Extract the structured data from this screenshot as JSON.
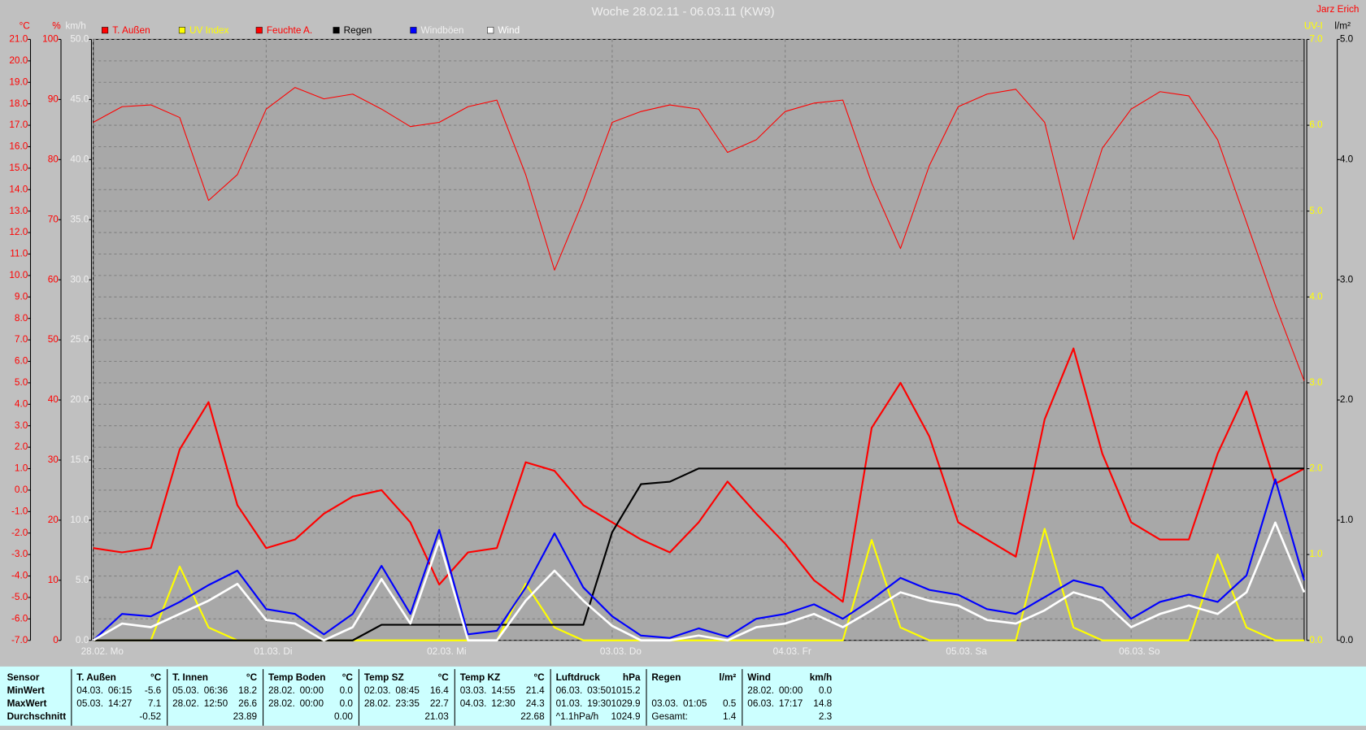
{
  "chart_data": {
    "type": "line",
    "title": "Woche 28.02.11 - 06.03.11 (KW9)",
    "author": "Jarz Erich",
    "grid": true,
    "x": [
      0,
      4,
      8,
      12,
      16,
      20,
      24,
      28,
      32,
      36,
      40,
      44,
      48,
      52,
      56,
      60,
      64,
      68,
      72,
      76,
      80,
      84,
      88,
      92,
      96,
      100,
      104,
      108,
      112,
      116,
      120,
      124,
      128,
      132,
      136,
      140,
      144,
      148,
      152,
      156,
      160,
      164,
      168
    ],
    "xlim": [
      0,
      168
    ],
    "xticks": [
      {
        "value": 0,
        "label": "28.02.  Mo"
      },
      {
        "value": 24,
        "label": "01.03.  Di"
      },
      {
        "value": 48,
        "label": "02.03.  Mi"
      },
      {
        "value": 72,
        "label": "03.03.  Do"
      },
      {
        "value": 96,
        "label": "04.03.  Fr"
      },
      {
        "value": 120,
        "label": "05.03.  Sa"
      },
      {
        "value": 144,
        "label": "06.03.  So"
      }
    ],
    "axes": {
      "temp": {
        "unit": "°C",
        "color": "#ff0000",
        "side": "left",
        "lim": [
          -7,
          21
        ],
        "ticks": [
          {
            "value": 21,
            "label": "21.0"
          },
          {
            "value": 20,
            "label": "20.0"
          },
          {
            "value": 19,
            "label": "19.0"
          },
          {
            "value": 18,
            "label": "18.0"
          },
          {
            "value": 17,
            "label": "17.0"
          },
          {
            "value": 16,
            "label": "16.0"
          },
          {
            "value": 15,
            "label": "15.0"
          },
          {
            "value": 14,
            "label": "14.0"
          },
          {
            "value": 13,
            "label": "13.0"
          },
          {
            "value": 12,
            "label": "12.0"
          },
          {
            "value": 11,
            "label": "11.0"
          },
          {
            "value": 10,
            "label": "10.0"
          },
          {
            "value": 9,
            "label": "9.0"
          },
          {
            "value": 8,
            "label": "8.0"
          },
          {
            "value": 7,
            "label": "7.0"
          },
          {
            "value": 6,
            "label": "6.0"
          },
          {
            "value": 5,
            "label": "5.0"
          },
          {
            "value": 4,
            "label": "4.0"
          },
          {
            "value": 3,
            "label": "3.0"
          },
          {
            "value": 2,
            "label": "2.0"
          },
          {
            "value": 1,
            "label": "1.0"
          },
          {
            "value": 0,
            "label": "0.0"
          },
          {
            "value": -1,
            "label": "-1.0"
          },
          {
            "value": -2,
            "label": "-2.0"
          },
          {
            "value": -3,
            "label": "-3.0"
          },
          {
            "value": -4,
            "label": "-4.0"
          },
          {
            "value": -5,
            "label": "-5.0"
          },
          {
            "value": -6,
            "label": "-6.0"
          },
          {
            "value": -7,
            "label": "-7.0"
          }
        ]
      },
      "hum": {
        "unit": "%",
        "color": "#ff0000",
        "side": "left",
        "lim": [
          0,
          100
        ],
        "ticks": [
          100,
          90,
          80,
          70,
          60,
          50,
          40,
          30,
          20,
          10,
          0
        ]
      },
      "wind": {
        "unit": "km/h",
        "color": "#f0f0f0",
        "side": "left",
        "lim": [
          0,
          50
        ],
        "ticks": [
          {
            "value": 50,
            "label": "50.0"
          },
          {
            "value": 45,
            "label": "45.0"
          },
          {
            "value": 40,
            "label": "40.0"
          },
          {
            "value": 35,
            "label": "35.0"
          },
          {
            "value": 30,
            "label": "30.0"
          },
          {
            "value": 25,
            "label": "25.0"
          },
          {
            "value": 20,
            "label": "20.0"
          },
          {
            "value": 15,
            "label": "15.0"
          },
          {
            "value": 10,
            "label": "10.0"
          },
          {
            "value": 5,
            "label": "5.0"
          },
          {
            "value": 0,
            "label": "0.0"
          }
        ]
      },
      "uv": {
        "unit": "UV-I",
        "color": "#ffff00",
        "side": "right",
        "lim": [
          0,
          7
        ],
        "ticks": [
          {
            "value": 7,
            "label": "7.0"
          },
          {
            "value": 6,
            "label": "6.0"
          },
          {
            "value": 5,
            "label": "5.0"
          },
          {
            "value": 4,
            "label": "4.0"
          },
          {
            "value": 3,
            "label": "3.0"
          },
          {
            "value": 2,
            "label": "2.0"
          },
          {
            "value": 1,
            "label": "1.0"
          },
          {
            "value": 0,
            "label": "0.0"
          }
        ]
      },
      "rain": {
        "unit": "l/m²",
        "color": "#000000",
        "side": "right",
        "lim": [
          0,
          5
        ],
        "ticks": [
          {
            "value": 5,
            "label": "5.0"
          },
          {
            "value": 4,
            "label": "4.0"
          },
          {
            "value": 3,
            "label": "3.0"
          },
          {
            "value": 2,
            "label": "2.0"
          },
          {
            "value": 1,
            "label": "1.0"
          },
          {
            "value": 0,
            "label": "0.0"
          }
        ]
      }
    },
    "series": [
      {
        "name": "T. Außen",
        "color": "#ff0000",
        "axis": "temp",
        "width": 2,
        "values": [
          -2.7,
          -2.9,
          -2.7,
          1.9,
          4.1,
          -0.7,
          -2.7,
          -2.3,
          -1.1,
          -0.3,
          0.0,
          -1.5,
          -4.4,
          -2.9,
          -2.7,
          1.3,
          0.9,
          -0.7,
          -1.5,
          -2.3,
          -2.9,
          -1.5,
          0.4,
          -1.1,
          -2.5,
          -4.2,
          -5.2,
          2.9,
          5.0,
          2.5,
          -1.5,
          -2.3,
          -3.1,
          3.3,
          6.6,
          1.7,
          -1.5,
          -2.3,
          -2.3,
          1.7,
          4.6,
          0.3,
          1.0
        ]
      },
      {
        "name": "UV Index",
        "color": "#ffff00",
        "axis": "uv",
        "width": 2,
        "values": [
          0,
          0,
          0,
          0.86,
          0.15,
          0,
          0,
          0,
          0,
          0,
          0,
          0,
          0,
          0,
          0,
          0.66,
          0.15,
          0,
          0,
          0,
          0,
          0,
          0,
          0,
          0,
          0,
          0,
          1.17,
          0.15,
          0,
          0,
          0,
          0,
          1.3,
          0.15,
          0,
          0,
          0,
          0,
          1.0,
          0.15,
          0,
          0
        ]
      },
      {
        "name": "Feuchte A.",
        "color": "#ff0000",
        "axis": "hum",
        "width": 1,
        "values": [
          86.2,
          88.8,
          89.1,
          87,
          73.2,
          77.5,
          88.4,
          92,
          90.1,
          90.9,
          88.4,
          85.5,
          86.2,
          88.8,
          89.9,
          77.5,
          61.6,
          73.2,
          86.2,
          88,
          89.1,
          88.4,
          81.2,
          83.3,
          88,
          89.4,
          89.9,
          76.1,
          65.2,
          79,
          88.8,
          90.9,
          91.7,
          86.2,
          66.7,
          81.9,
          88.4,
          91.3,
          90.6,
          83.3,
          69.6,
          55.8,
          43.2
        ]
      },
      {
        "name": "Regen",
        "color": "#000000",
        "axis": "rain",
        "width": 2,
        "values": [
          0,
          0,
          0,
          0,
          0,
          0,
          0,
          0,
          0,
          0,
          0.13,
          0.13,
          0.13,
          0.13,
          0.13,
          0.13,
          0.13,
          0.13,
          0.9,
          1.3,
          1.32,
          1.43,
          1.43,
          1.43,
          1.43,
          1.43,
          1.43,
          1.43,
          1.43,
          1.43,
          1.43,
          1.43,
          1.43,
          1.43,
          1.43,
          1.43,
          1.43,
          1.43,
          1.43,
          1.43,
          1.43,
          1.43,
          1.43
        ]
      },
      {
        "name": "Windböen",
        "color": "#0000ff",
        "axis": "wind",
        "width": 2,
        "values": [
          0,
          2.2,
          2.0,
          3.2,
          4.6,
          5.8,
          2.6,
          2.2,
          0.5,
          2.2,
          6.2,
          2.2,
          9.2,
          0.5,
          0.8,
          4.4,
          8.9,
          4.4,
          2.0,
          0.4,
          0.2,
          1.0,
          0.3,
          1.8,
          2.2,
          3.0,
          1.8,
          3.4,
          5.2,
          4.2,
          3.8,
          2.6,
          2.2,
          3.6,
          5.0,
          4.4,
          1.8,
          3.2,
          3.8,
          3.2,
          5.4,
          13.4,
          5.0
        ]
      },
      {
        "name": "Wind",
        "color": "#ffffff",
        "axis": "wind",
        "width": 2.5,
        "values": [
          0,
          1.4,
          1.1,
          2.2,
          3.3,
          4.7,
          1.7,
          1.4,
          0,
          1.1,
          5.1,
          1.4,
          8.3,
          0,
          0,
          3.3,
          5.8,
          3.3,
          1.2,
          0,
          0,
          0.4,
          0,
          1.1,
          1.4,
          2.2,
          1.1,
          2.5,
          4,
          3.3,
          2.9,
          1.7,
          1.4,
          2.5,
          4,
          3.3,
          1.1,
          2.2,
          2.9,
          2.2,
          4,
          9.8,
          4
        ]
      }
    ]
  },
  "table": {
    "row_labels": [
      "Sensor",
      "MinWert",
      "MaxWert",
      "Durchschnitt"
    ],
    "groups": [
      {
        "name": "T. Außen",
        "unit": "°C",
        "rows": [
          [
            "04.03.",
            "06:15",
            "-5.6"
          ],
          [
            "05.03.",
            "14:27",
            "7.1"
          ],
          [
            null,
            null,
            "-0.52"
          ]
        ]
      },
      {
        "name": "T. Innen",
        "unit": "°C",
        "rows": [
          [
            "05.03.",
            "06:36",
            "18.2"
          ],
          [
            "28.02.",
            "12:50",
            "26.6"
          ],
          [
            null,
            null,
            "23.89"
          ]
        ]
      },
      {
        "name": "Temp Boden",
        "unit": "°C",
        "rows": [
          [
            "28.02.",
            "00:00",
            "0.0"
          ],
          [
            "28.02.",
            "00:00",
            "0.0"
          ],
          [
            null,
            null,
            "0.00"
          ]
        ]
      },
      {
        "name": "Temp SZ",
        "unit": "°C",
        "rows": [
          [
            "02.03.",
            "08:45",
            "16.4"
          ],
          [
            "28.02.",
            "23:35",
            "22.7"
          ],
          [
            null,
            null,
            "21.03"
          ]
        ]
      },
      {
        "name": "Temp KZ",
        "unit": "°C",
        "rows": [
          [
            "03.03.",
            "14:55",
            "21.4"
          ],
          [
            "04.03.",
            "12:30",
            "24.3"
          ],
          [
            null,
            null,
            "22.68"
          ]
        ]
      },
      {
        "name": "Luftdruck",
        "unit": "hPa",
        "rows": [
          [
            "06.03.",
            "03:50",
            "1015.2"
          ],
          [
            "01.03.",
            "19:30",
            "1029.9"
          ],
          [
            "^1.1hPa/h",
            null,
            "1024.9"
          ]
        ]
      },
      {
        "name": "Regen",
        "unit": "l/m²",
        "rows": [
          [
            null,
            null,
            null
          ],
          [
            "03.03.",
            "01:05",
            "0.5"
          ],
          [
            "Gesamt:",
            null,
            "1.4"
          ]
        ]
      },
      {
        "name": "Wind",
        "unit": "km/h",
        "rows": [
          [
            "28.02.",
            "00:00",
            "0.0"
          ],
          [
            "06.03.",
            "17:17",
            "14.8"
          ],
          [
            null,
            null,
            "2.3"
          ]
        ]
      }
    ]
  }
}
